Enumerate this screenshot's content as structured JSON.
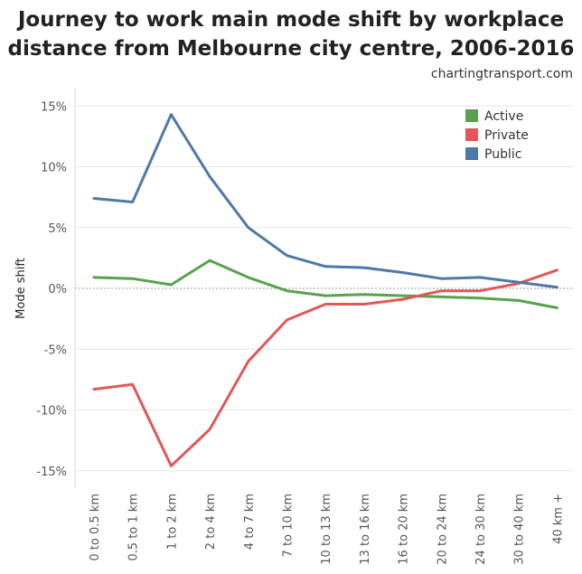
{
  "chart_data": {
    "type": "line",
    "title_lines": [
      "Journey to work main mode shift by workplace",
      "distance from Melbourne city centre, 2006-2016"
    ],
    "source": "chartingtransport.com",
    "xlabel": "",
    "ylabel": "Mode shift",
    "ylim": [
      -0.16,
      0.155
    ],
    "yticks": [
      0.15,
      0.1,
      0.05,
      0,
      -0.05,
      -0.1,
      -0.15
    ],
    "ytick_labels": [
      "15%",
      "10%",
      "5%",
      "0%",
      "-5%",
      "-10%",
      "-15%"
    ],
    "categories": [
      "0 to 0.5 km",
      "0.5 to 1 km",
      "1 to 2 km",
      "2 to 4 km",
      "4 to 7 km",
      "7 to 10 km",
      "10 to 13 km",
      "13 to 16 km",
      "16 to 20 km",
      "20 to 24 km",
      "24 to 30 km",
      "30 to 40 km",
      "40 km +"
    ],
    "legend_position": "top-right",
    "series": [
      {
        "name": "Active",
        "color": "#59a14f",
        "values": [
          0.009,
          0.008,
          0.003,
          0.023,
          0.009,
          -0.002,
          -0.006,
          -0.005,
          -0.006,
          -0.007,
          -0.008,
          -0.01,
          -0.016
        ]
      },
      {
        "name": "Private",
        "color": "#e15759",
        "values": [
          -0.083,
          -0.079,
          -0.146,
          -0.116,
          -0.06,
          -0.026,
          -0.013,
          -0.013,
          -0.009,
          -0.002,
          -0.002,
          0.004,
          0.015
        ]
      },
      {
        "name": "Public",
        "color": "#4e79a7",
        "values": [
          0.074,
          0.071,
          0.143,
          0.092,
          0.05,
          0.027,
          0.018,
          0.017,
          0.013,
          0.008,
          0.009,
          0.005,
          0.001
        ]
      }
    ]
  }
}
